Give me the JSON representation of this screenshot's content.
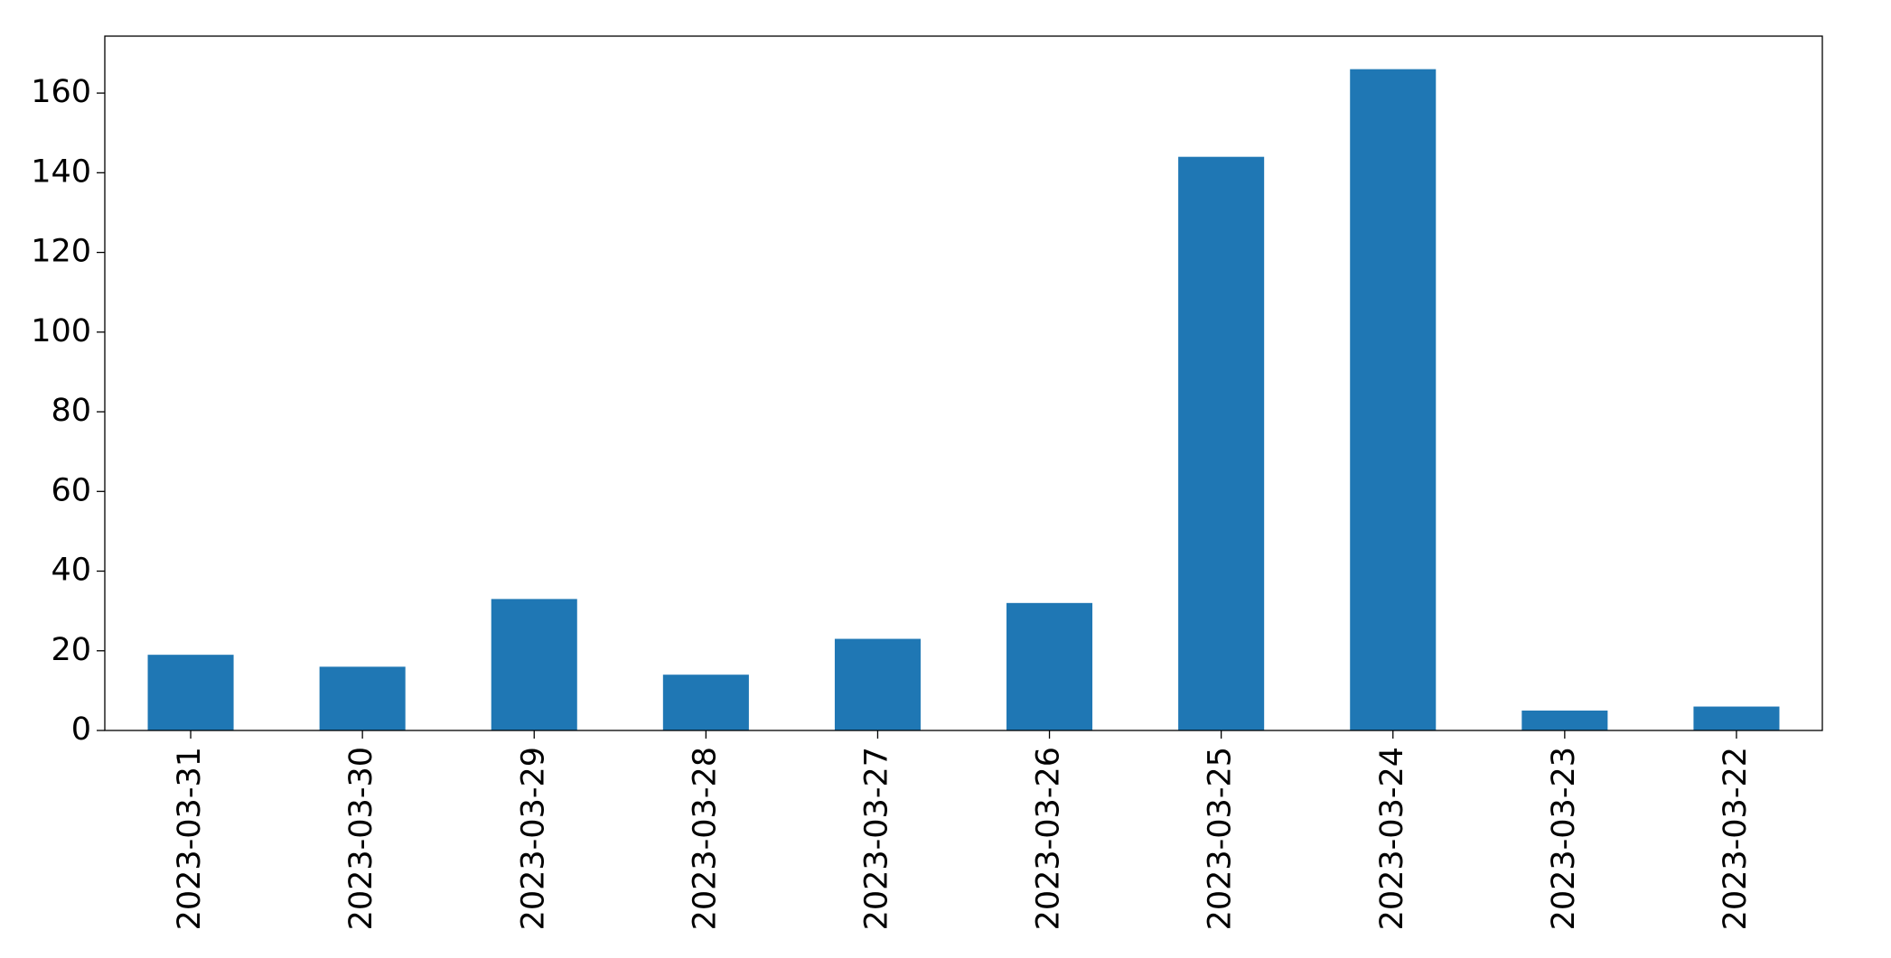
{
  "chart_data": {
    "type": "bar",
    "categories": [
      "2023-03-31",
      "2023-03-30",
      "2023-03-29",
      "2023-03-28",
      "2023-03-27",
      "2023-03-26",
      "2023-03-25",
      "2023-03-24",
      "2023-03-23",
      "2023-03-22"
    ],
    "values": [
      19,
      16,
      33,
      14,
      23,
      32,
      144,
      166,
      5,
      6
    ],
    "color": "#1f77b4",
    "ylim": [
      0,
      174.3
    ],
    "yticks": [
      0,
      20,
      40,
      60,
      80,
      100,
      120,
      140,
      160
    ],
    "grid": false
  }
}
